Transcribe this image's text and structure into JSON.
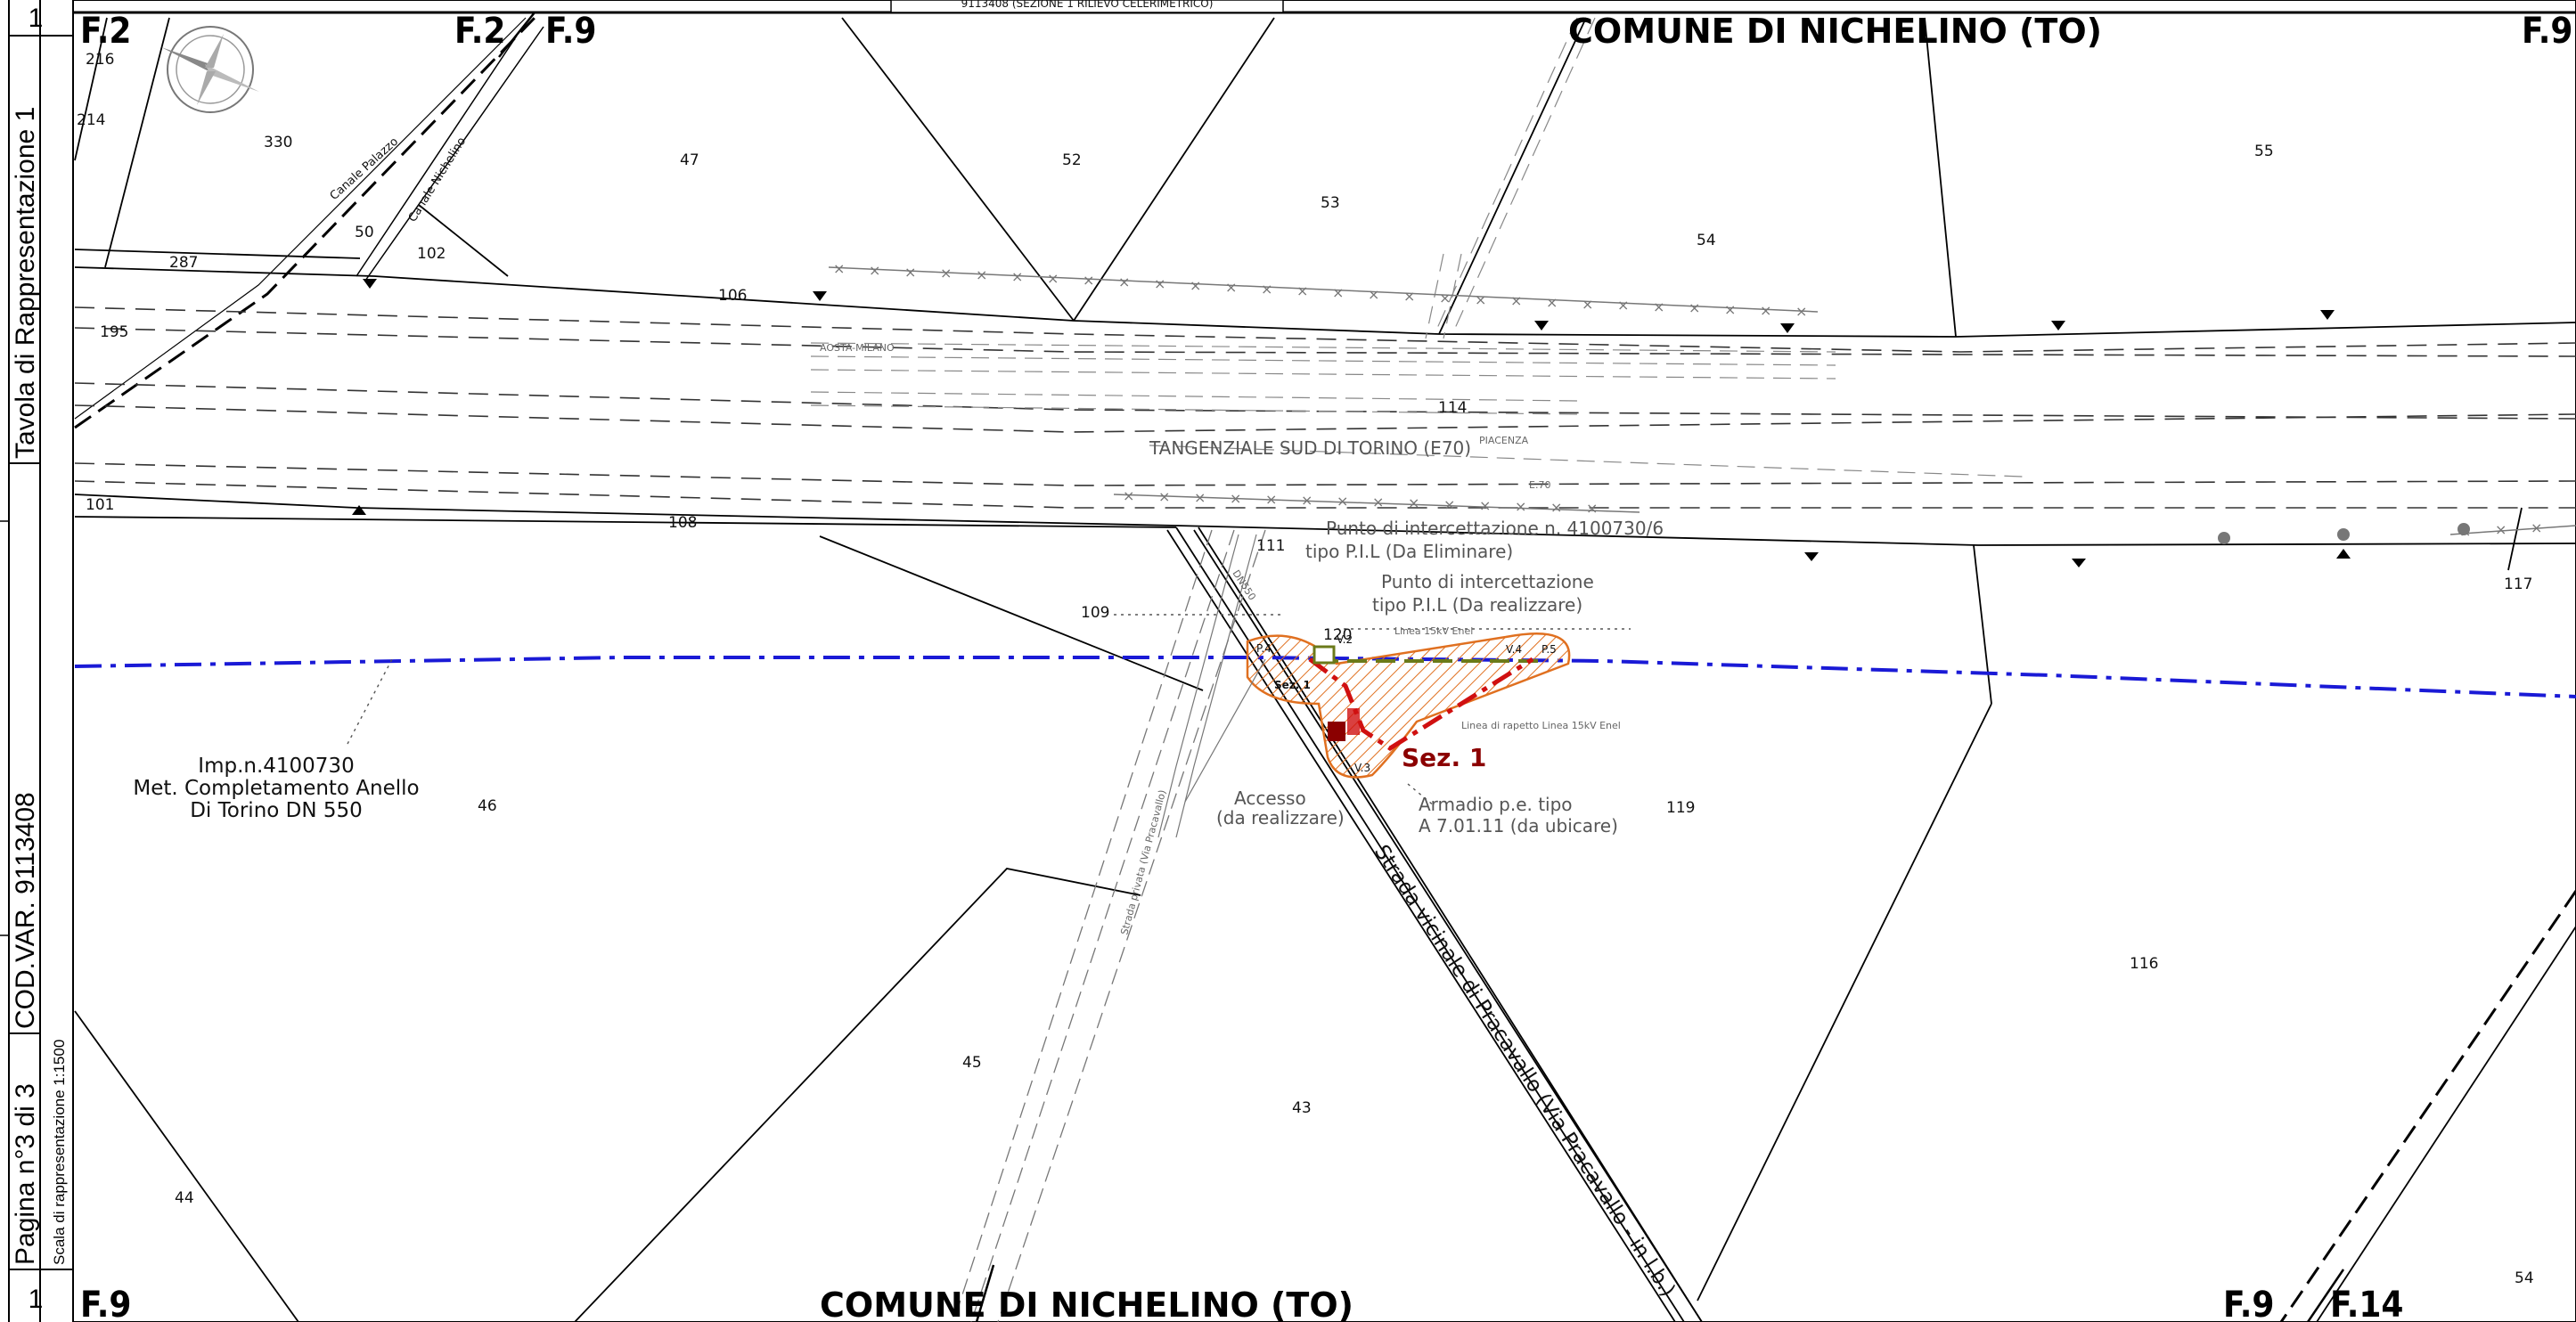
{
  "sidebar": {
    "page_num_top": "1",
    "page_num_bottom": "1",
    "tavola": "Tavola di Rappresentazione 1",
    "cod_var": "COD.VAR. 9113408",
    "pagina": "Pagina n°3  di 3",
    "scala": "Scala di rappresentazione 1:1500"
  },
  "header_strip": "9113408 (SEZIONE 1 RILIEVO CELERIMETRICO)",
  "sheets": {
    "top_left": "F.2",
    "top_mid": "F.2",
    "top_mid2": "F.9",
    "top_right": "F.9",
    "bottom_left": "F.9",
    "bottom_right_a": "F.9",
    "bottom_right_b": "F.14"
  },
  "communes": {
    "top": "COMUNE DI NICHELINO (TO)",
    "bottom": "COMUNE DI NICHELINO (TO)"
  },
  "parcels": [
    "216",
    "214",
    "330",
    "47",
    "52",
    "53",
    "54",
    "55",
    "50",
    "102",
    "287",
    "106",
    "195",
    "114",
    "101",
    "108",
    "111",
    "109",
    "120",
    "117",
    "119",
    "46",
    "116",
    "45",
    "43",
    "44",
    "54",
    "P.5",
    "V.4",
    "V.2",
    "V.3",
    "P.4"
  ],
  "canals": {
    "palazzo": "Canale Palazzo",
    "nichelino": "Canale Nichelino"
  },
  "roads": {
    "tangenziale": "TANGENZIALE SUD DI TORINO (E70)",
    "piacenza": "PIACENZA",
    "aosta": "AOSTA-MILANO",
    "e70": "E.70",
    "strada": "Strada vicinale di Pracavallo (Via Pracavallo - in l.b.)"
  },
  "annotations": {
    "pil_eliminare_1": "Punto di intercettazione n. 4100730/6",
    "pil_eliminare_2": "tipo P.I.L (Da Eliminare)",
    "pil_realizzare_1": "Punto di intercettazione",
    "pil_realizzare_2": "tipo P.I.L (Da realizzare)",
    "linea_enel": "Linea 15kV Enel",
    "linea_rapetto": "Linea di rapetto Linea 15kV Enel",
    "accesso_1": "Accesso",
    "accesso_2": "(da realizzare)",
    "armadio_1": "Armadio p.e. tipo",
    "armadio_2": "A 7.01.11 (da ubicare)",
    "imp_1": "Imp.n.4100730",
    "imp_2": "Met. Completamento Anello",
    "imp_3": "Di Torino DN 550",
    "sez": "Sez. 1",
    "sez_small": "Sez. 1",
    "dn550": "DN550",
    "strada_privata": "Strada privata (Via Pracavallo)"
  },
  "colors": {
    "pipeline_blue": "#1a1ad6",
    "hatch_orange": "#e07020",
    "red_route": "#d01010",
    "olive_dash": "#6b7a1a",
    "grey_line": "#888888"
  }
}
